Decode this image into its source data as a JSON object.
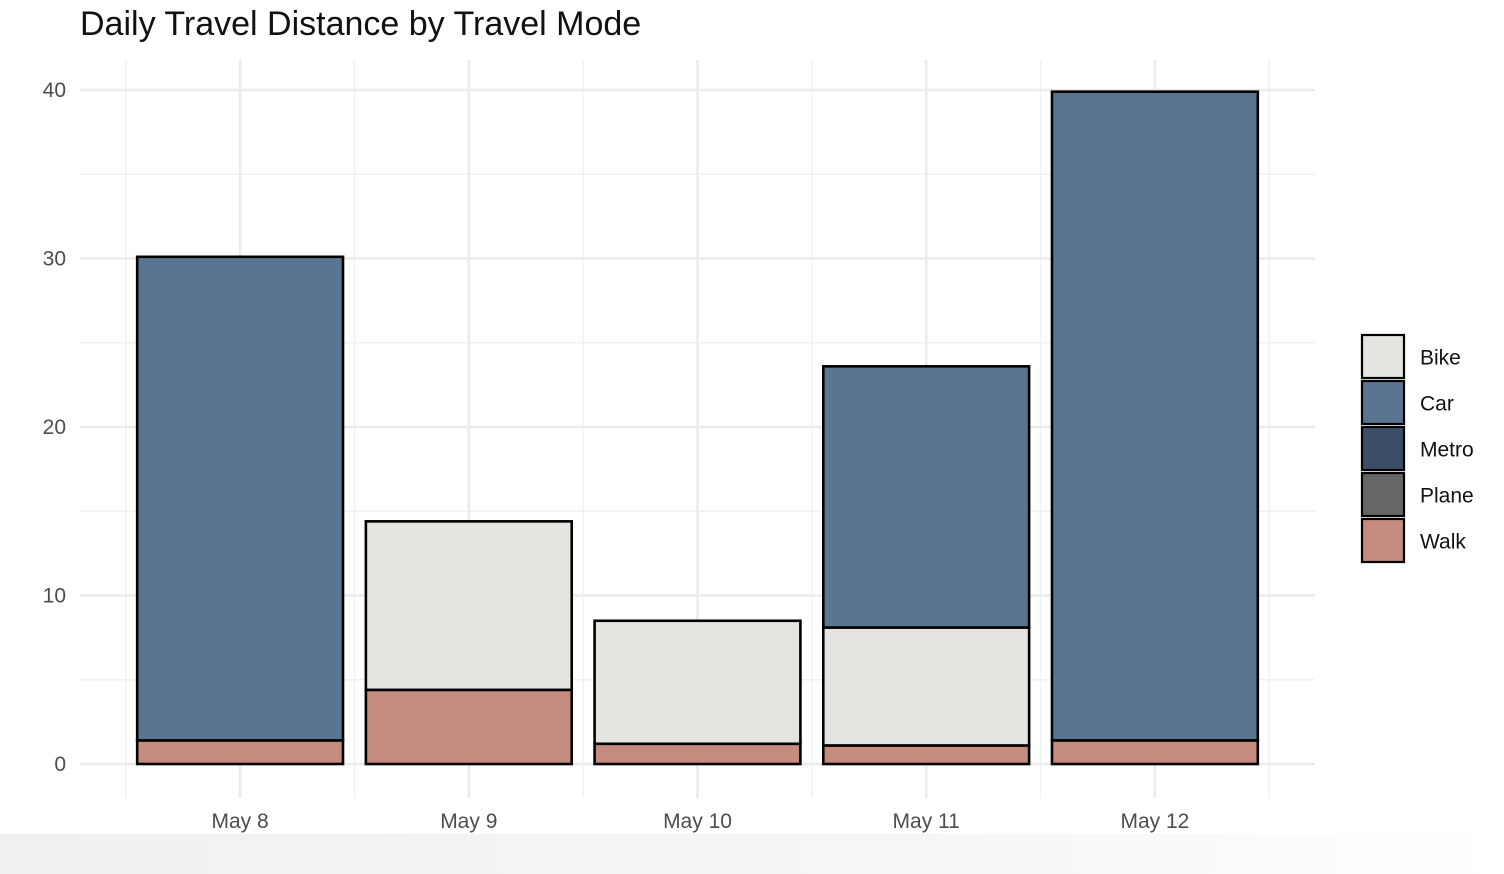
{
  "chart_data": {
    "type": "bar",
    "stacked": true,
    "title": "Daily Travel Distance by Travel Mode",
    "xlabel": "",
    "ylabel": "",
    "ylim": [
      0,
      40
    ],
    "yticks": [
      0,
      10,
      20,
      30,
      40
    ],
    "grid": true,
    "legend_position": "right",
    "categories": [
      "May 8",
      "May 9",
      "May 10",
      "May 11",
      "May 12"
    ],
    "legend": [
      {
        "name": "Bike",
        "color": "#e5e4e0"
      },
      {
        "name": "Car",
        "color": "#5a7591"
      },
      {
        "name": "Metro",
        "color": "#3c4d68"
      },
      {
        "name": "Plane",
        "color": "#666666"
      },
      {
        "name": "Walk",
        "color": "#c48b7e"
      }
    ],
    "series": [
      {
        "name": "Walk",
        "color": "#c48b7e",
        "values": [
          1.4,
          4.4,
          1.2,
          1.1,
          1.4
        ]
      },
      {
        "name": "Bike",
        "color": "#e5e4e0",
        "values": [
          0,
          10.0,
          7.3,
          7.0,
          0
        ]
      },
      {
        "name": "Car",
        "color": "#5a7591",
        "values": [
          28.7,
          0,
          0,
          15.5,
          38.5
        ]
      },
      {
        "name": "Metro",
        "color": "#3c4d68",
        "values": [
          0,
          0,
          0,
          0,
          0
        ]
      },
      {
        "name": "Plane",
        "color": "#666666",
        "values": [
          0,
          0,
          0,
          0,
          0
        ]
      }
    ]
  }
}
